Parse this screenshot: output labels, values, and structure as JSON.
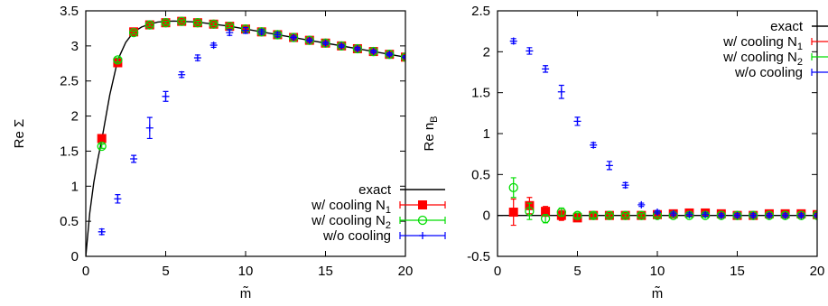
{
  "chart_data": [
    {
      "type": "scatter",
      "xlabel": "m̃",
      "ylabel": "Re Σ",
      "xlim": [
        0,
        20
      ],
      "ylim": [
        0,
        3.5
      ],
      "xticks": [
        "0",
        "5",
        "10",
        "15",
        "20"
      ],
      "yticks": [
        "0",
        "0.5",
        "1",
        "1.5",
        "2",
        "2.5",
        "3",
        "3.5"
      ],
      "legend_position": "bottom-right",
      "exact_curve": {
        "name": "exact",
        "x": [
          0,
          0.25,
          0.5,
          0.75,
          1,
          1.5,
          2,
          2.5,
          3,
          3.5,
          4,
          4.5,
          5,
          5.5,
          6,
          7,
          8,
          9,
          10,
          11,
          12,
          13,
          14,
          15,
          16,
          17,
          18,
          19,
          20
        ],
        "y": [
          0,
          0.62,
          1.05,
          1.38,
          1.66,
          2.3,
          2.8,
          3.05,
          3.2,
          3.27,
          3.31,
          3.34,
          3.35,
          3.355,
          3.35,
          3.34,
          3.31,
          3.28,
          3.24,
          3.2,
          3.16,
          3.12,
          3.08,
          3.04,
          3.0,
          2.96,
          2.92,
          2.88,
          2.84
        ]
      },
      "series": [
        {
          "name": "w/ cooling N_1",
          "color": "#ff0000",
          "marker": "square",
          "x": [
            1,
            2,
            3,
            4,
            5,
            6,
            7,
            8,
            9,
            10,
            11,
            12,
            13,
            14,
            15,
            16,
            17,
            18,
            19,
            20
          ],
          "y": [
            1.68,
            2.76,
            3.2,
            3.3,
            3.33,
            3.35,
            3.33,
            3.31,
            3.28,
            3.24,
            3.2,
            3.16,
            3.12,
            3.08,
            3.04,
            3.0,
            2.96,
            2.92,
            2.88,
            2.84
          ],
          "err": [
            0.03,
            0.03,
            0.02,
            0.02,
            0.02,
            0.02,
            0.02,
            0.02,
            0.02,
            0.02,
            0.02,
            0.02,
            0.02,
            0.02,
            0.02,
            0.02,
            0.02,
            0.02,
            0.02,
            0.02
          ]
        },
        {
          "name": "w/ cooling N_2",
          "color": "#00dd00",
          "marker": "circle",
          "x": [
            1,
            2,
            3,
            4,
            5,
            6,
            7,
            8,
            9,
            10,
            11,
            12,
            13,
            14,
            15,
            16,
            17,
            18,
            19,
            20
          ],
          "y": [
            1.57,
            2.8,
            3.19,
            3.3,
            3.33,
            3.35,
            3.33,
            3.31,
            3.28,
            3.24,
            3.2,
            3.16,
            3.12,
            3.08,
            3.04,
            3.0,
            2.96,
            2.92,
            2.88,
            2.84
          ],
          "err": [
            0.03,
            0.03,
            0.02,
            0.02,
            0.02,
            0.02,
            0.02,
            0.02,
            0.02,
            0.02,
            0.02,
            0.02,
            0.02,
            0.02,
            0.02,
            0.02,
            0.02,
            0.02,
            0.02,
            0.02
          ]
        },
        {
          "name": "w/o cooling",
          "color": "#0000ff",
          "marker": "plus",
          "x": [
            1,
            2,
            3,
            4,
            5,
            6,
            7,
            8,
            9,
            10,
            11,
            12,
            13,
            14,
            15,
            16,
            17,
            18,
            19,
            20
          ],
          "y": [
            0.35,
            0.82,
            1.39,
            1.83,
            2.28,
            2.59,
            2.83,
            3.01,
            3.19,
            3.22,
            3.2,
            3.16,
            3.12,
            3.08,
            3.04,
            3.0,
            2.96,
            2.92,
            2.88,
            2.84
          ],
          "err": [
            0.04,
            0.06,
            0.05,
            0.15,
            0.07,
            0.04,
            0.04,
            0.03,
            0.04,
            0.04,
            0.03,
            0.03,
            0.02,
            0.02,
            0.02,
            0.02,
            0.02,
            0.02,
            0.02,
            0.02
          ]
        }
      ]
    },
    {
      "type": "scatter",
      "xlabel": "m̃",
      "ylabel": "Re n_B",
      "xlim": [
        0,
        20
      ],
      "ylim": [
        -0.5,
        2.5
      ],
      "xticks": [
        "0",
        "5",
        "10",
        "15",
        "20"
      ],
      "yticks": [
        "-0.5",
        "0",
        "0.5",
        "1",
        "1.5",
        "2",
        "2.5"
      ],
      "legend_position": "top-right",
      "exact_curve": {
        "name": "exact",
        "x": [
          0,
          20
        ],
        "y": [
          0,
          0
        ]
      },
      "series": [
        {
          "name": "w/ cooling N_1",
          "color": "#ff0000",
          "marker": "square",
          "x": [
            1,
            2,
            3,
            4,
            5,
            6,
            7,
            8,
            9,
            10,
            11,
            12,
            13,
            14,
            15,
            16,
            17,
            18,
            19,
            20
          ],
          "y": [
            0.04,
            0.12,
            0.05,
            0.0,
            -0.03,
            0.0,
            0.0,
            0.0,
            0.0,
            0.01,
            0.02,
            0.03,
            0.03,
            0.02,
            0.0,
            0.0,
            0.02,
            0.02,
            0.02,
            0.01
          ],
          "err": [
            0.16,
            0.1,
            0.06,
            0.06,
            0.04,
            0.04,
            0.03,
            0.03,
            0.02,
            0.02,
            0.02,
            0.02,
            0.02,
            0.02,
            0.02,
            0.02,
            0.02,
            0.02,
            0.02,
            0.02
          ]
        },
        {
          "name": "w/ cooling N_2",
          "color": "#00dd00",
          "marker": "circle",
          "x": [
            1,
            2,
            3,
            4,
            5,
            6,
            7,
            8,
            9,
            10,
            11,
            12,
            13,
            14,
            15,
            16,
            17,
            18,
            19,
            20
          ],
          "y": [
            0.34,
            0.05,
            -0.04,
            0.04,
            0.0,
            0.0,
            0.0,
            0.0,
            0.0,
            0.0,
            0.0,
            0.0,
            0.0,
            0.0,
            0.0,
            0.0,
            0.0,
            0.0,
            0.0,
            0.0
          ],
          "err": [
            0.12,
            0.1,
            0.05,
            0.05,
            0.03,
            0.03,
            0.02,
            0.02,
            0.02,
            0.02,
            0.02,
            0.02,
            0.02,
            0.02,
            0.02,
            0.02,
            0.02,
            0.02,
            0.02,
            0.02
          ]
        },
        {
          "name": "w/o cooling",
          "color": "#0000ff",
          "marker": "plus",
          "x": [
            1,
            2,
            3,
            4,
            5,
            6,
            7,
            8,
            9,
            10,
            11,
            12,
            13,
            14,
            15,
            16,
            17,
            18,
            19,
            20
          ],
          "y": [
            2.13,
            2.01,
            1.79,
            1.51,
            1.15,
            0.86,
            0.61,
            0.37,
            0.13,
            0.04,
            0.02,
            0.01,
            0.01,
            0.0,
            0.0,
            0.0,
            0.0,
            0.0,
            0.0,
            0.0
          ],
          "err": [
            0.03,
            0.04,
            0.04,
            0.08,
            0.05,
            0.03,
            0.05,
            0.03,
            0.02,
            0.02,
            0.02,
            0.02,
            0.02,
            0.02,
            0.02,
            0.02,
            0.02,
            0.02,
            0.02,
            0.02
          ]
        }
      ]
    }
  ]
}
